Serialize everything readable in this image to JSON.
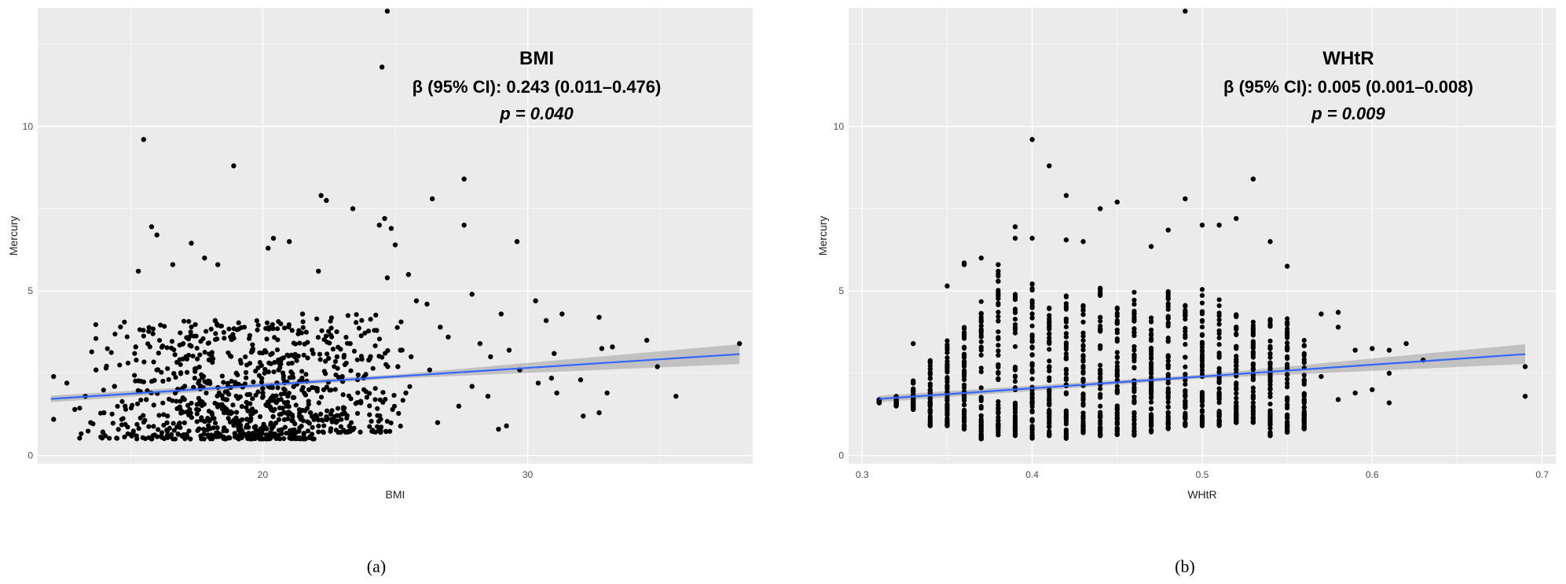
{
  "chart_data": [
    {
      "type": "scatter",
      "title": "",
      "xlabel": "BMI",
      "ylabel": "Mercury",
      "xlim": [
        11.5,
        38.5
      ],
      "ylim": [
        -0.25,
        13.6
      ],
      "x_ticks": [
        20,
        30
      ],
      "y_ticks": [
        0,
        5,
        10
      ],
      "x_tick_labels": [
        "20",
        "30"
      ],
      "y_tick_labels": [
        "0",
        "5",
        "10"
      ],
      "grid": true,
      "panel_label": "(a)",
      "annotation": {
        "title": "BMI",
        "beta": "β (95% CI): 0.243 (0.011–0.476)",
        "p": "p = 0.040"
      },
      "fit_line": {
        "x": [
          12,
          38
        ],
        "y": [
          1.72,
          3.08
        ],
        "ci_halfwidth_start": 0.1,
        "ci_halfwidth_end": 0.3,
        "color": "#3366ff"
      },
      "points": [
        [
          24.7,
          13.5
        ],
        [
          24.5,
          11.8
        ],
        [
          15.5,
          9.6
        ],
        [
          18.9,
          8.8
        ],
        [
          27.6,
          8.4
        ],
        [
          22.2,
          7.9
        ],
        [
          22.4,
          7.75
        ],
        [
          23.4,
          7.5
        ],
        [
          26.4,
          7.8
        ],
        [
          24.6,
          7.2
        ],
        [
          24.4,
          7.0
        ],
        [
          24.85,
          6.9
        ],
        [
          27.6,
          7.0
        ],
        [
          15.8,
          6.95
        ],
        [
          16.0,
          6.7
        ],
        [
          20.4,
          6.6
        ],
        [
          20.2,
          6.3
        ],
        [
          21.0,
          6.5
        ],
        [
          17.3,
          6.45
        ],
        [
          29.6,
          6.5
        ],
        [
          25.0,
          6.4
        ],
        [
          17.8,
          6.0
        ],
        [
          18.3,
          5.8
        ],
        [
          16.6,
          5.8
        ],
        [
          15.3,
          5.6
        ],
        [
          22.1,
          5.6
        ],
        [
          25.5,
          5.5
        ],
        [
          24.7,
          5.4
        ],
        [
          27.9,
          4.9
        ],
        [
          25.8,
          4.7
        ],
        [
          30.3,
          4.7
        ],
        [
          26.2,
          4.6
        ],
        [
          31.3,
          4.3
        ],
        [
          32.7,
          4.2
        ],
        [
          29.0,
          4.3
        ],
        [
          30.7,
          4.1
        ],
        [
          34.5,
          3.5
        ],
        [
          33.2,
          3.3
        ],
        [
          32.8,
          3.25
        ],
        [
          28.2,
          3.4
        ],
        [
          34.9,
          2.7
        ],
        [
          35.6,
          1.8
        ],
        [
          29.2,
          0.9
        ],
        [
          28.9,
          0.8
        ],
        [
          32.1,
          1.2
        ],
        [
          32.7,
          1.3
        ],
        [
          38.0,
          3.4
        ],
        [
          12.1,
          2.4
        ],
        [
          12.1,
          1.1
        ],
        [
          13.5,
          1.0
        ],
        [
          31.1,
          1.9
        ],
        [
          30.4,
          2.2
        ],
        [
          29.7,
          2.6
        ],
        [
          30.9,
          2.35
        ],
        [
          26.6,
          1.0
        ],
        [
          27.4,
          1.5
        ],
        [
          31.0,
          3.1
        ],
        [
          33.0,
          1.9
        ],
        [
          32.0,
          2.3
        ],
        [
          27.0,
          3.6
        ],
        [
          28.6,
          3.0
        ],
        [
          29.3,
          3.2
        ],
        [
          27.9,
          2.1
        ],
        [
          28.5,
          1.8
        ],
        [
          26.7,
          3.9
        ],
        [
          26.3,
          2.6
        ],
        [
          25.2,
          3.2
        ],
        [
          25.1,
          2.7
        ],
        [
          25.6,
          3.0
        ],
        [
          25.4,
          1.9
        ],
        [
          24.9,
          1.4
        ],
        [
          24.3,
          3.8
        ],
        [
          24.0,
          2.9
        ],
        [
          23.7,
          1.6
        ],
        [
          23.3,
          3.4
        ],
        [
          23.0,
          2.4
        ],
        [
          22.6,
          1.1
        ],
        [
          22.8,
          3.0
        ],
        [
          22.3,
          2.0
        ],
        [
          21.8,
          1.3
        ],
        [
          21.5,
          4.3
        ],
        [
          21.2,
          3.0
        ],
        [
          20.9,
          1.5
        ],
        [
          20.6,
          2.6
        ],
        [
          20.0,
          1.9
        ],
        [
          19.6,
          3.2
        ],
        [
          19.4,
          1.1
        ],
        [
          19.0,
          2.5
        ],
        [
          18.6,
          1.7
        ],
        [
          18.2,
          4.1
        ],
        [
          17.9,
          2.2
        ],
        [
          17.5,
          1.4
        ],
        [
          17.1,
          3.0
        ],
        [
          16.8,
          2.0
        ],
        [
          16.4,
          1.2
        ],
        [
          16.0,
          2.6
        ],
        [
          15.6,
          1.7
        ],
        [
          15.2,
          3.3
        ],
        [
          14.8,
          1.5
        ],
        [
          14.4,
          2.1
        ],
        [
          14.0,
          1.3
        ],
        [
          13.7,
          2.6
        ],
        [
          13.3,
          1.8
        ],
        [
          12.9,
          1.4
        ],
        [
          12.6,
          2.2
        ]
      ]
    },
    {
      "type": "scatter",
      "title": "",
      "xlabel": "WHtR",
      "ylabel": "Mercury",
      "xlim": [
        0.292,
        0.708
      ],
      "ylim": [
        -0.25,
        13.6
      ],
      "x_ticks": [
        0.3,
        0.4,
        0.5,
        0.6,
        0.7
      ],
      "y_ticks": [
        0,
        5,
        10
      ],
      "x_tick_labels": [
        "0.3",
        "0.4",
        "0.5",
        "0.6",
        "0.7"
      ],
      "y_tick_labels": [
        "0",
        "5",
        "10"
      ],
      "grid": true,
      "panel_label": "(b)",
      "annotation": {
        "title": "WHtR",
        "beta": "β (95% CI): 0.005 (0.001–0.008)",
        "p": "p = 0.009"
      },
      "fit_line": {
        "x": [
          0.31,
          0.69
        ],
        "y": [
          1.72,
          3.08
        ],
        "ci_halfwidth_start": 0.1,
        "ci_halfwidth_end": 0.3,
        "color": "#3366ff"
      },
      "columns": [
        {
          "x": 0.31,
          "min": 1.6,
          "max": 1.7
        },
        {
          "x": 0.32,
          "min": 1.5,
          "max": 1.8
        },
        {
          "x": 0.33,
          "min": 1.4,
          "max": 2.3
        },
        {
          "x": 0.34,
          "min": 0.9,
          "max": 2.9
        },
        {
          "x": 0.35,
          "min": 0.9,
          "max": 3.6
        },
        {
          "x": 0.36,
          "min": 0.8,
          "max": 4.0
        },
        {
          "x": 0.37,
          "min": 0.5,
          "max": 4.7
        },
        {
          "x": 0.38,
          "min": 0.6,
          "max": 5.7
        },
        {
          "x": 0.39,
          "min": 0.6,
          "max": 5.2
        },
        {
          "x": 0.4,
          "min": 0.5,
          "max": 5.5
        },
        {
          "x": 0.41,
          "min": 0.6,
          "max": 4.5
        },
        {
          "x": 0.42,
          "min": 0.5,
          "max": 5.1
        },
        {
          "x": 0.43,
          "min": 0.6,
          "max": 4.7
        },
        {
          "x": 0.44,
          "min": 0.6,
          "max": 5.1
        },
        {
          "x": 0.45,
          "min": 0.6,
          "max": 4.5
        },
        {
          "x": 0.46,
          "min": 0.6,
          "max": 5.0
        },
        {
          "x": 0.47,
          "min": 0.7,
          "max": 4.2
        },
        {
          "x": 0.48,
          "min": 0.8,
          "max": 5.1
        },
        {
          "x": 0.49,
          "min": 0.9,
          "max": 4.7
        },
        {
          "x": 0.5,
          "min": 0.9,
          "max": 5.4
        },
        {
          "x": 0.51,
          "min": 0.9,
          "max": 4.9
        },
        {
          "x": 0.52,
          "min": 1.0,
          "max": 4.3
        },
        {
          "x": 0.53,
          "min": 1.0,
          "max": 4.1
        },
        {
          "x": 0.54,
          "min": 0.6,
          "max": 4.4
        },
        {
          "x": 0.55,
          "min": 0.7,
          "max": 4.2
        },
        {
          "x": 0.56,
          "min": 0.8,
          "max": 3.5
        }
      ],
      "points": [
        [
          0.49,
          13.5
        ],
        [
          0.4,
          9.6
        ],
        [
          0.41,
          8.8
        ],
        [
          0.53,
          8.4
        ],
        [
          0.42,
          7.9
        ],
        [
          0.49,
          7.8
        ],
        [
          0.44,
          7.5
        ],
        [
          0.45,
          7.7
        ],
        [
          0.52,
          7.2
        ],
        [
          0.5,
          7.0
        ],
        [
          0.51,
          7.0
        ],
        [
          0.48,
          6.85
        ],
        [
          0.39,
          6.95
        ],
        [
          0.42,
          6.55
        ],
        [
          0.4,
          6.6
        ],
        [
          0.39,
          6.6
        ],
        [
          0.43,
          6.5
        ],
        [
          0.54,
          6.5
        ],
        [
          0.47,
          6.35
        ],
        [
          0.37,
          6.0
        ],
        [
          0.36,
          5.85
        ],
        [
          0.36,
          5.8
        ],
        [
          0.55,
          5.75
        ],
        [
          0.38,
          5.8
        ],
        [
          0.35,
          5.15
        ],
        [
          0.57,
          4.3
        ],
        [
          0.58,
          4.35
        ],
        [
          0.58,
          3.9
        ],
        [
          0.59,
          3.2
        ],
        [
          0.6,
          3.25
        ],
        [
          0.61,
          3.2
        ],
        [
          0.62,
          3.4
        ],
        [
          0.61,
          2.5
        ],
        [
          0.6,
          2.0
        ],
        [
          0.59,
          1.9
        ],
        [
          0.58,
          1.7
        ],
        [
          0.61,
          1.6
        ],
        [
          0.63,
          2.9
        ],
        [
          0.69,
          2.7
        ],
        [
          0.69,
          1.8
        ],
        [
          0.57,
          2.4
        ],
        [
          0.56,
          1.3
        ],
        [
          0.33,
          3.4
        ],
        [
          0.32,
          1.75
        ],
        [
          0.31,
          1.6
        ]
      ]
    }
  ]
}
